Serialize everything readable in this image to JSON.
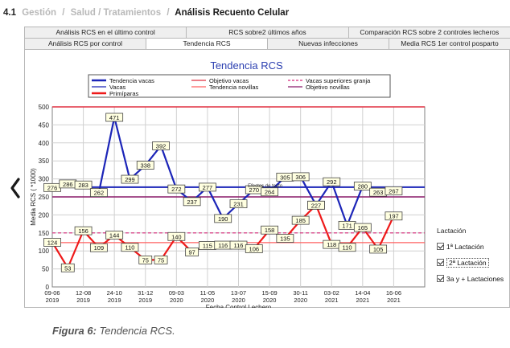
{
  "breadcrumb": {
    "number": "4.1",
    "items": [
      "Gestión",
      "Salud / Tratamientos",
      "Análisis Recuento Celular"
    ],
    "separator": "/"
  },
  "tabs": {
    "back_row": [
      "Análisis RCS en el último control",
      "RCS sobre2 últimos años",
      "Comparación RCS sobre 2 controles lecheros"
    ],
    "front_row": [
      "Análisis RCS por control",
      "Tendencia RCS",
      "Nuevas infecciones",
      "Media RCS 1er control posparto"
    ],
    "active": "Tendencia RCS"
  },
  "colors": {
    "vacas": "#1c25b8",
    "primiparas": "#ee1a1a",
    "objetivo_vacas": "#e03040",
    "tendencia_novillas": "#ff6060",
    "vacas_superiores": "#d8287a",
    "objetivo_novillas": "#8a1a6a",
    "title": "#2b3fb0"
  },
  "chart_data": {
    "type": "line",
    "title": "Tendencia RCS",
    "ylabel": "Media RCS ( *1000)",
    "xlabel": "Fecha Control Lechero",
    "ylim": [
      0,
      500
    ],
    "yticks": [
      0,
      50,
      100,
      150,
      200,
      250,
      300,
      350,
      400,
      450,
      500
    ],
    "xlim": [
      0,
      24
    ],
    "xticks": [
      {
        "pos": 0,
        "day": "09-06",
        "year": "2019"
      },
      {
        "pos": 2,
        "day": "12-08",
        "year": "2019"
      },
      {
        "pos": 4,
        "day": "24-10",
        "year": "2019"
      },
      {
        "pos": 6,
        "day": "31-12",
        "year": "2019"
      },
      {
        "pos": 8,
        "day": "09-03",
        "year": "2020"
      },
      {
        "pos": 10,
        "day": "11-05",
        "year": "2020"
      },
      {
        "pos": 12,
        "day": "13-07",
        "year": "2020"
      },
      {
        "pos": 14,
        "day": "15-09",
        "year": "2020"
      },
      {
        "pos": 16,
        "day": "30-11",
        "year": "2020"
      },
      {
        "pos": 18,
        "day": "03-02",
        "year": "2021"
      },
      {
        "pos": 20,
        "day": "14-04",
        "year": "2021"
      },
      {
        "pos": 22,
        "day": "16-06",
        "year": "2021"
      }
    ],
    "legend": [
      {
        "name": "Tendencia vacas",
        "key": "vacas",
        "style": "solid",
        "width": 2
      },
      {
        "name": "Objetivo vacas",
        "key": "objetivo_vacas",
        "style": "solid",
        "width": 1
      },
      {
        "name": "Vacas superiores granja",
        "key": "vacas_superiores",
        "style": "dashed",
        "width": 1
      },
      {
        "name": "Vacas",
        "key": "vacas",
        "style": "solid",
        "width": 1
      },
      {
        "name": "Tendencia novillas",
        "key": "tendencia_novillas",
        "style": "solid",
        "width": 1
      },
      {
        "name": "Objetivo novillas",
        "key": "objetivo_novillas",
        "style": "solid",
        "width": 1
      },
      {
        "name": "Primíparas",
        "key": "primiparas",
        "style": "solid",
        "width": 2
      }
    ],
    "series": [
      {
        "name": "Vacas",
        "key": "vacas",
        "x": [
          0,
          1,
          2,
          3,
          4,
          5,
          6,
          7,
          8,
          9,
          10,
          11,
          12,
          13,
          14,
          15,
          16,
          17,
          18,
          19,
          20,
          21,
          22
        ],
        "values": [
          276,
          286,
          283,
          262,
          471,
          299,
          338,
          392,
          272,
          237,
          277,
          190,
          231,
          270,
          264,
          305,
          306,
          227,
          292,
          171,
          280,
          263,
          267
        ],
        "labels": [
          "276",
          "286",
          "283",
          "262",
          "471",
          "299",
          "338",
          "392",
          "272",
          "237",
          "277",
          "190",
          "231",
          "270",
          "264",
          "305",
          "306",
          "227",
          "292",
          "171",
          "280",
          "263",
          "267"
        ]
      },
      {
        "name": "Primíparas",
        "key": "primiparas",
        "x": [
          0,
          1,
          2,
          3,
          4,
          5,
          6,
          7,
          8,
          9,
          10,
          11,
          12,
          13,
          14,
          15,
          16,
          17,
          18,
          19,
          20,
          21,
          22
        ],
        "values": [
          124,
          53,
          156,
          109,
          144,
          110,
          75,
          75,
          140,
          97,
          115,
          116,
          116,
          106,
          158,
          135,
          185,
          227,
          118,
          110,
          165,
          105,
          197
        ],
        "labels": [
          "124",
          "53",
          "156",
          "109",
          "144",
          "110",
          "75",
          "75",
          "140",
          "97",
          "115",
          "116",
          "116",
          "106",
          "158",
          "135",
          "185",
          "227",
          "118",
          "110",
          "165",
          "105",
          "197"
        ]
      }
    ],
    "reference_lines": [
      {
        "name": "Objetivo vacas",
        "key": "objetivo_vacas",
        "y": 500
      },
      {
        "name": "Tendencia vacas",
        "key": "vacas",
        "y": 277
      },
      {
        "name": "Objetivo novillas",
        "key": "objetivo_novillas",
        "y": 250
      },
      {
        "name": "Vacas superiores granja",
        "key": "vacas_superiores",
        "y": 150
      },
      {
        "name": "Tendencia novillas",
        "key": "tendencia_novillas",
        "y": 123
      }
    ],
    "annotation": {
      "text": "Efectos de texto",
      "x": 12.6,
      "y": 270
    },
    "grid": true
  },
  "lactacion": {
    "title": "Lactación",
    "options": [
      {
        "label": "1ª Lactación",
        "checked": true
      },
      {
        "label": "2ª Lactación",
        "checked": true,
        "selected": true
      },
      {
        "label": "3a y + Lactaciones",
        "checked": true
      }
    ]
  },
  "caption": {
    "prefix": "Figura 6:",
    "text": " Tendencia RCS."
  }
}
